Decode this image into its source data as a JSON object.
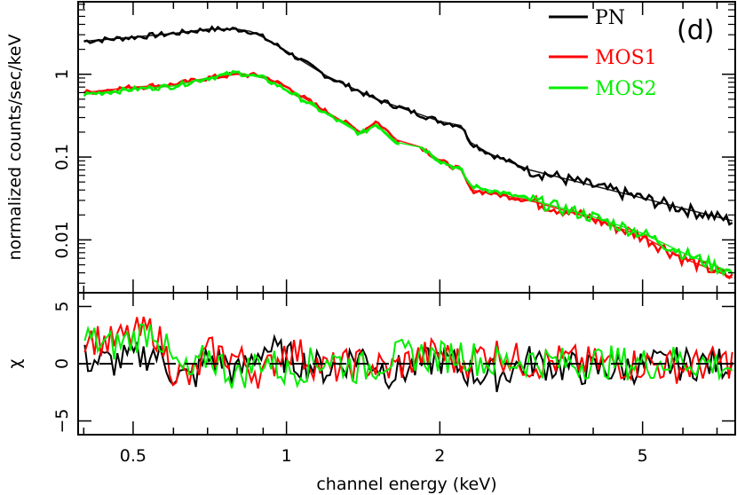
{
  "chart_data": {
    "type": "line",
    "panel_label": "(d)",
    "xlabel": "channel energy (keV)",
    "x_scale": "log",
    "xlim": [
      0.39,
      7.6
    ],
    "x_ticks": [
      0.5,
      1,
      2,
      5
    ],
    "x_tick_labels": [
      "0.5",
      "1",
      "2",
      "5"
    ],
    "spectrum": {
      "ylabel": "normalized counts/sec/keV",
      "y_scale": "log",
      "ylim": [
        0.0023,
        7.5
      ],
      "y_ticks": [
        0.01,
        0.1,
        1
      ],
      "y_tick_labels": [
        "0.01",
        "0.1",
        "1"
      ],
      "series": [
        {
          "name": "PN",
          "color": "#000000",
          "x": [
            0.4,
            0.5,
            0.6,
            0.7,
            0.8,
            0.85,
            0.9,
            1.0,
            1.2,
            1.5,
            2.0,
            2.2,
            2.3,
            2.5,
            3.0,
            4.0,
            5.0,
            6.0,
            7.5
          ],
          "y": [
            2.5,
            2.8,
            3.1,
            3.5,
            3.5,
            3.3,
            2.8,
            1.9,
            0.95,
            0.5,
            0.27,
            0.24,
            0.15,
            0.11,
            0.07,
            0.045,
            0.032,
            0.024,
            0.017
          ]
        },
        {
          "name": "MOS1",
          "color": "#ff0000",
          "x": [
            0.4,
            0.5,
            0.6,
            0.7,
            0.8,
            0.9,
            1.0,
            1.2,
            1.4,
            1.5,
            1.65,
            1.85,
            2.0,
            2.2,
            2.3,
            2.5,
            3.0,
            4.0,
            5.0,
            6.0,
            7.5
          ],
          "y": [
            0.6,
            0.7,
            0.75,
            0.9,
            1.0,
            0.95,
            0.7,
            0.35,
            0.2,
            0.27,
            0.16,
            0.13,
            0.09,
            0.07,
            0.04,
            0.037,
            0.03,
            0.018,
            0.011,
            0.006,
            0.0035
          ]
        },
        {
          "name": "MOS2",
          "color": "#00ee00",
          "x": [
            0.4,
            0.5,
            0.6,
            0.7,
            0.8,
            0.9,
            1.0,
            1.2,
            1.4,
            1.5,
            1.65,
            1.85,
            2.0,
            2.2,
            2.3,
            2.5,
            3.0,
            4.0,
            5.0,
            6.0,
            7.5
          ],
          "y": [
            0.57,
            0.66,
            0.72,
            0.9,
            1.05,
            0.9,
            0.65,
            0.33,
            0.19,
            0.25,
            0.15,
            0.13,
            0.09,
            0.07,
            0.045,
            0.04,
            0.031,
            0.019,
            0.012,
            0.007,
            0.004
          ]
        }
      ]
    },
    "residuals": {
      "ylabel": "χ",
      "ylim": [
        -6.2,
        6.2
      ],
      "y_ticks": [
        -5,
        0,
        5
      ],
      "y_tick_labels": [
        "−5",
        "0",
        "5"
      ],
      "series": [
        {
          "name": "PN",
          "color": "#000000",
          "x": [
            0.4,
            0.45,
            0.5,
            0.55,
            0.6,
            0.65,
            0.7,
            0.75,
            0.8,
            0.9,
            1.0,
            1.2,
            1.4,
            1.6,
            1.8,
            2.0,
            2.3,
            2.6,
            3.0,
            3.5,
            4.0,
            5.0,
            6.0,
            7.5
          ],
          "y": [
            0.4,
            0.1,
            0.5,
            1.0,
            -0.8,
            -1.5,
            0.5,
            0.2,
            -1.0,
            1.5,
            0.5,
            -0.5,
            0.8,
            -0.8,
            -0.3,
            0.5,
            -0.8,
            -1.0,
            0.2,
            -0.3,
            -0.6,
            -0.2,
            0.0,
            0.1
          ]
        },
        {
          "name": "MOS1",
          "color": "#ff0000",
          "x": [
            0.4,
            0.45,
            0.5,
            0.55,
            0.6,
            0.65,
            0.7,
            0.8,
            0.9,
            1.0,
            1.2,
            1.4,
            1.6,
            1.8,
            2.0,
            2.2,
            2.5,
            3.0,
            3.5,
            4.0,
            5.0,
            6.0,
            7.5
          ],
          "y": [
            2.5,
            1.8,
            2.5,
            3.0,
            -0.5,
            -1.5,
            1.0,
            0.5,
            -1.0,
            1.5,
            -0.5,
            0.0,
            -0.5,
            0.5,
            1.0,
            0.0,
            1.2,
            0.0,
            0.3,
            0.0,
            0.0,
            -0.3,
            0.2
          ]
        },
        {
          "name": "MOS2",
          "color": "#00ee00",
          "x": [
            0.4,
            0.45,
            0.5,
            0.55,
            0.6,
            0.65,
            0.7,
            0.8,
            0.9,
            1.0,
            1.2,
            1.4,
            1.6,
            1.8,
            2.0,
            2.2,
            2.5,
            3.0,
            3.5,
            4.0,
            5.0,
            6.0,
            7.5
          ],
          "y": [
            2.3,
            1.5,
            2.2,
            3.2,
            0.0,
            -1.2,
            0.8,
            -1.2,
            0.5,
            -0.8,
            0.5,
            -0.5,
            0.5,
            0.8,
            0.5,
            1.0,
            0.0,
            0.3,
            0.0,
            0.2,
            0.0,
            0.3,
            -0.3
          ]
        }
      ]
    }
  },
  "legend": {
    "entries": [
      {
        "label": "PN",
        "color": "#000000"
      },
      {
        "label": "MOS1",
        "color": "#ff0000"
      },
      {
        "label": "MOS2",
        "color": "#00ee00"
      }
    ]
  }
}
